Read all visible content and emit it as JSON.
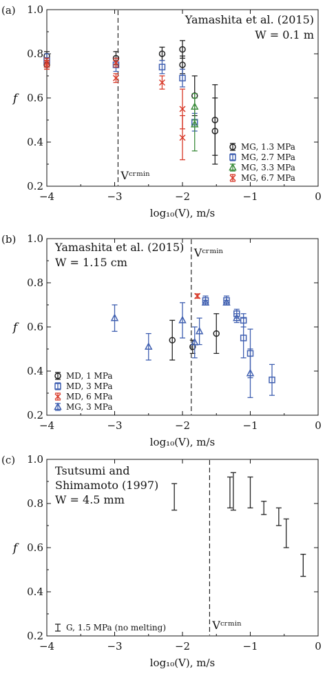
{
  "figure": {
    "xlabel": "log₁₀(V),  m/s",
    "ylabel": "f",
    "vcr_label": "Vᶜʳᵐⁱⁿ",
    "xticks": [
      "-4",
      "-3",
      "-2",
      "-1",
      "0"
    ],
    "yticks": [
      "0.2",
      "0.4",
      "0.6",
      "0.8",
      "1.0"
    ]
  },
  "chart_data": [
    {
      "type": "scatter",
      "panel_label": "(a)",
      "annotation": [
        "Yamashita et al. (2015)",
        "W = 0.1 m"
      ],
      "xlim": [
        -4,
        0
      ],
      "ylim": [
        0.2,
        1.0
      ],
      "vcr_min_x": -2.95,
      "legend_position": "bottom-right",
      "series": [
        {
          "name": "MG, 1.3 MPa",
          "marker": "circle",
          "color": "#222222",
          "points": [
            {
              "x": -4.0,
              "y": 0.79,
              "lo": 0.77,
              "hi": 0.81
            },
            {
              "x": -4.0,
              "y": 0.75,
              "lo": 0.73,
              "hi": 0.77
            },
            {
              "x": -2.98,
              "y": 0.78,
              "lo": 0.75,
              "hi": 0.81
            },
            {
              "x": -2.3,
              "y": 0.8,
              "lo": 0.77,
              "hi": 0.83
            },
            {
              "x": -2.0,
              "y": 0.82,
              "lo": 0.78,
              "hi": 0.86
            },
            {
              "x": -2.0,
              "y": 0.75,
              "lo": 0.71,
              "hi": 0.79
            },
            {
              "x": -1.82,
              "y": 0.61,
              "lo": 0.52,
              "hi": 0.7
            },
            {
              "x": -1.52,
              "y": 0.5,
              "lo": 0.34,
              "hi": 0.66
            },
            {
              "x": -1.52,
              "y": 0.45,
              "lo": 0.3,
              "hi": 0.6
            }
          ]
        },
        {
          "name": "MG, 2.7 MPa",
          "marker": "square",
          "color": "#3f5fb0",
          "points": [
            {
              "x": -4.0,
              "y": 0.77,
              "lo": 0.74,
              "hi": 0.8
            },
            {
              "x": -2.98,
              "y": 0.75,
              "lo": 0.72,
              "hi": 0.78
            },
            {
              "x": -2.3,
              "y": 0.74,
              "lo": 0.71,
              "hi": 0.77
            },
            {
              "x": -2.0,
              "y": 0.69,
              "lo": 0.65,
              "hi": 0.73
            },
            {
              "x": -1.82,
              "y": 0.49,
              "lo": 0.45,
              "hi": 0.53
            }
          ]
        },
        {
          "name": "MG, 3.3 MPa",
          "marker": "triangle",
          "color": "#3c8c3c",
          "points": [
            {
              "x": -1.82,
              "y": 0.56,
              "lo": 0.5,
              "hi": 0.62
            },
            {
              "x": -1.82,
              "y": 0.48,
              "lo": 0.36,
              "hi": 0.6
            }
          ]
        },
        {
          "name": "MG, 6.7 MPa",
          "marker": "x",
          "color": "#d83a2a",
          "points": [
            {
              "x": -4.0,
              "y": 0.76,
              "lo": 0.74,
              "hi": 0.78
            },
            {
              "x": -4.0,
              "y": 0.75,
              "lo": 0.73,
              "hi": 0.77
            },
            {
              "x": -2.98,
              "y": 0.76,
              "lo": 0.74,
              "hi": 0.78
            },
            {
              "x": -2.98,
              "y": 0.69,
              "lo": 0.67,
              "hi": 0.71
            },
            {
              "x": -2.3,
              "y": 0.67,
              "lo": 0.64,
              "hi": 0.7
            },
            {
              "x": -2.0,
              "y": 0.55,
              "lo": 0.46,
              "hi": 0.64
            },
            {
              "x": -2.0,
              "y": 0.42,
              "lo": 0.32,
              "hi": 0.52
            }
          ]
        }
      ]
    },
    {
      "type": "scatter",
      "panel_label": "(b)",
      "annotation": [
        "Yamashita et al. (2015)",
        "W = 1.15 cm"
      ],
      "xlim": [
        -4,
        0
      ],
      "ylim": [
        0.2,
        1.0
      ],
      "vcr_min_x": -1.87,
      "legend_position": "bottom-left",
      "series": [
        {
          "name": "MD, 1 MPa",
          "marker": "circle",
          "color": "#222222",
          "points": [
            {
              "x": -2.15,
              "y": 0.54,
              "lo": 0.45,
              "hi": 0.63
            },
            {
              "x": -1.85,
              "y": 0.51,
              "lo": 0.48,
              "hi": 0.54
            },
            {
              "x": -1.5,
              "y": 0.57,
              "lo": 0.48,
              "hi": 0.66
            }
          ]
        },
        {
          "name": "MD, 3 MPa",
          "marker": "square",
          "color": "#3f5fb0",
          "points": [
            {
              "x": -1.66,
              "y": 0.72,
              "lo": 0.7,
              "hi": 0.74
            },
            {
              "x": -1.35,
              "y": 0.72,
              "lo": 0.7,
              "hi": 0.74
            },
            {
              "x": -1.2,
              "y": 0.66,
              "lo": 0.64,
              "hi": 0.68
            },
            {
              "x": -1.1,
              "y": 0.63,
              "lo": 0.6,
              "hi": 0.66
            },
            {
              "x": -1.1,
              "y": 0.55,
              "lo": 0.46,
              "hi": 0.64
            },
            {
              "x": -1.0,
              "y": 0.48,
              "lo": 0.37,
              "hi": 0.59
            },
            {
              "x": -0.68,
              "y": 0.36,
              "lo": 0.29,
              "hi": 0.43
            }
          ]
        },
        {
          "name": "MD, 6 MPa",
          "marker": "x",
          "color": "#d83a2a",
          "points": [
            {
              "x": -1.78,
              "y": 0.74,
              "lo": 0.73,
              "hi": 0.75
            }
          ]
        },
        {
          "name": "MG, 3 MPa",
          "marker": "triangle",
          "color": "#3f5fb0",
          "points": [
            {
              "x": -3.0,
              "y": 0.64,
              "lo": 0.58,
              "hi": 0.7
            },
            {
              "x": -2.5,
              "y": 0.51,
              "lo": 0.45,
              "hi": 0.57
            },
            {
              "x": -2.0,
              "y": 0.63,
              "lo": 0.55,
              "hi": 0.71
            },
            {
              "x": -1.82,
              "y": 0.53,
              "lo": 0.46,
              "hi": 0.6
            },
            {
              "x": -1.75,
              "y": 0.58,
              "lo": 0.52,
              "hi": 0.64
            },
            {
              "x": -1.66,
              "y": 0.71,
              "lo": 0.7,
              "hi": 0.72
            },
            {
              "x": -1.35,
              "y": 0.71,
              "lo": 0.7,
              "hi": 0.72
            },
            {
              "x": -1.2,
              "y": 0.64,
              "lo": 0.62,
              "hi": 0.66
            },
            {
              "x": -1.0,
              "y": 0.39,
              "lo": 0.28,
              "hi": 0.5
            }
          ]
        }
      ]
    },
    {
      "type": "scatter",
      "panel_label": "(c)",
      "annotation": [
        "Tsutsumi and",
        "Shimamoto (1997)",
        "W = 4.5 mm"
      ],
      "xlim": [
        -4,
        0
      ],
      "ylim": [
        0.2,
        1.0
      ],
      "vcr_min_x": -1.6,
      "legend_position": "bottom-left",
      "series": [
        {
          "name": "G, 1.5 MPa (no melting)",
          "marker": "none",
          "color": "#222222",
          "points": [
            {
              "x": -2.12,
              "lo": 0.77,
              "hi": 0.89
            },
            {
              "x": -1.3,
              "lo": 0.78,
              "hi": 0.92
            },
            {
              "x": -1.25,
              "lo": 0.77,
              "hi": 0.94
            },
            {
              "x": -1.0,
              "lo": 0.78,
              "hi": 0.92
            },
            {
              "x": -0.8,
              "lo": 0.75,
              "hi": 0.81
            },
            {
              "x": -0.58,
              "lo": 0.7,
              "hi": 0.78
            },
            {
              "x": -0.47,
              "lo": 0.6,
              "hi": 0.73
            },
            {
              "x": -0.22,
              "lo": 0.47,
              "hi": 0.57
            }
          ]
        }
      ]
    }
  ]
}
